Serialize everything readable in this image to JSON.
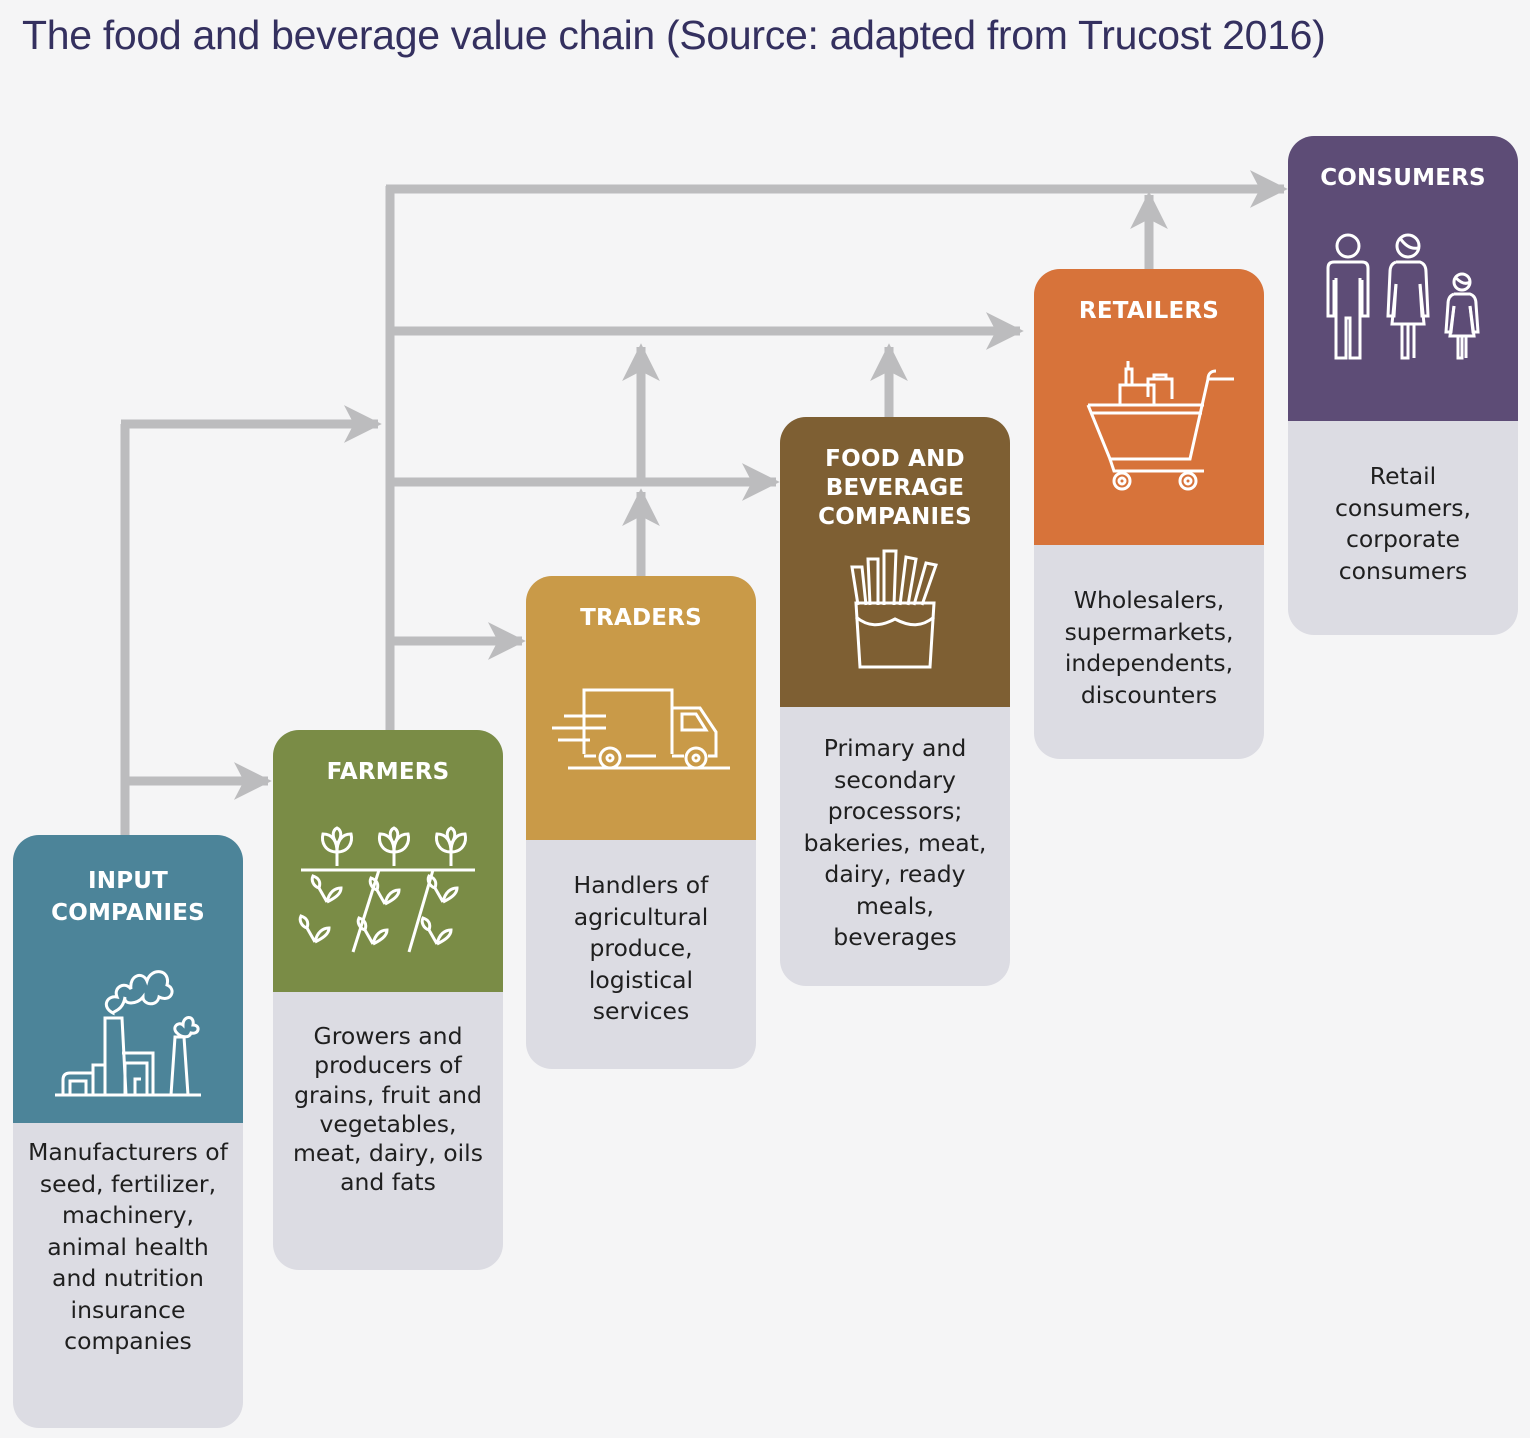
{
  "title": "The food and beverage value chain (Source: adapted from Trucost 2016)",
  "colors": {
    "input": "#4c8499",
    "farmers": "#7a8c46",
    "traders": "#c99a48",
    "food": "#7e5f33",
    "retailers": "#d7733a",
    "consumers": "#5d4c76",
    "desc_bg": "#dcdce3",
    "arrow": "#bcbcbe",
    "title": "#34305f"
  },
  "stages": {
    "input": {
      "label": "INPUT\nCOMPANIES",
      "icon": "factory-icon",
      "description": "Manufacturers of seed, fertilizer, machinery, animal health and nutrition insurance companies"
    },
    "farmers": {
      "label": "FARMERS",
      "icon": "crops-icon",
      "description": "Growers and producers of grains, fruit and vegetables, meat, dairy, oils and fats"
    },
    "traders": {
      "label": "TRADERS",
      "icon": "truck-icon",
      "description": "Handlers of agricultural produce, logistical services"
    },
    "food": {
      "label": "FOOD AND\nBEVERAGE\nCOMPANIES",
      "icon": "fries-icon",
      "description": "Primary and secondary processors; bakeries, meat, dairy, ready meals, beverages"
    },
    "retailers": {
      "label": "RETAILERS",
      "icon": "shopping-cart-icon",
      "description": "Wholesalers, supermarkets, independents, discounters"
    },
    "consumers": {
      "label": "CONSUMERS",
      "icon": "family-icon",
      "description": "Retail consumers, corporate consumers"
    }
  }
}
